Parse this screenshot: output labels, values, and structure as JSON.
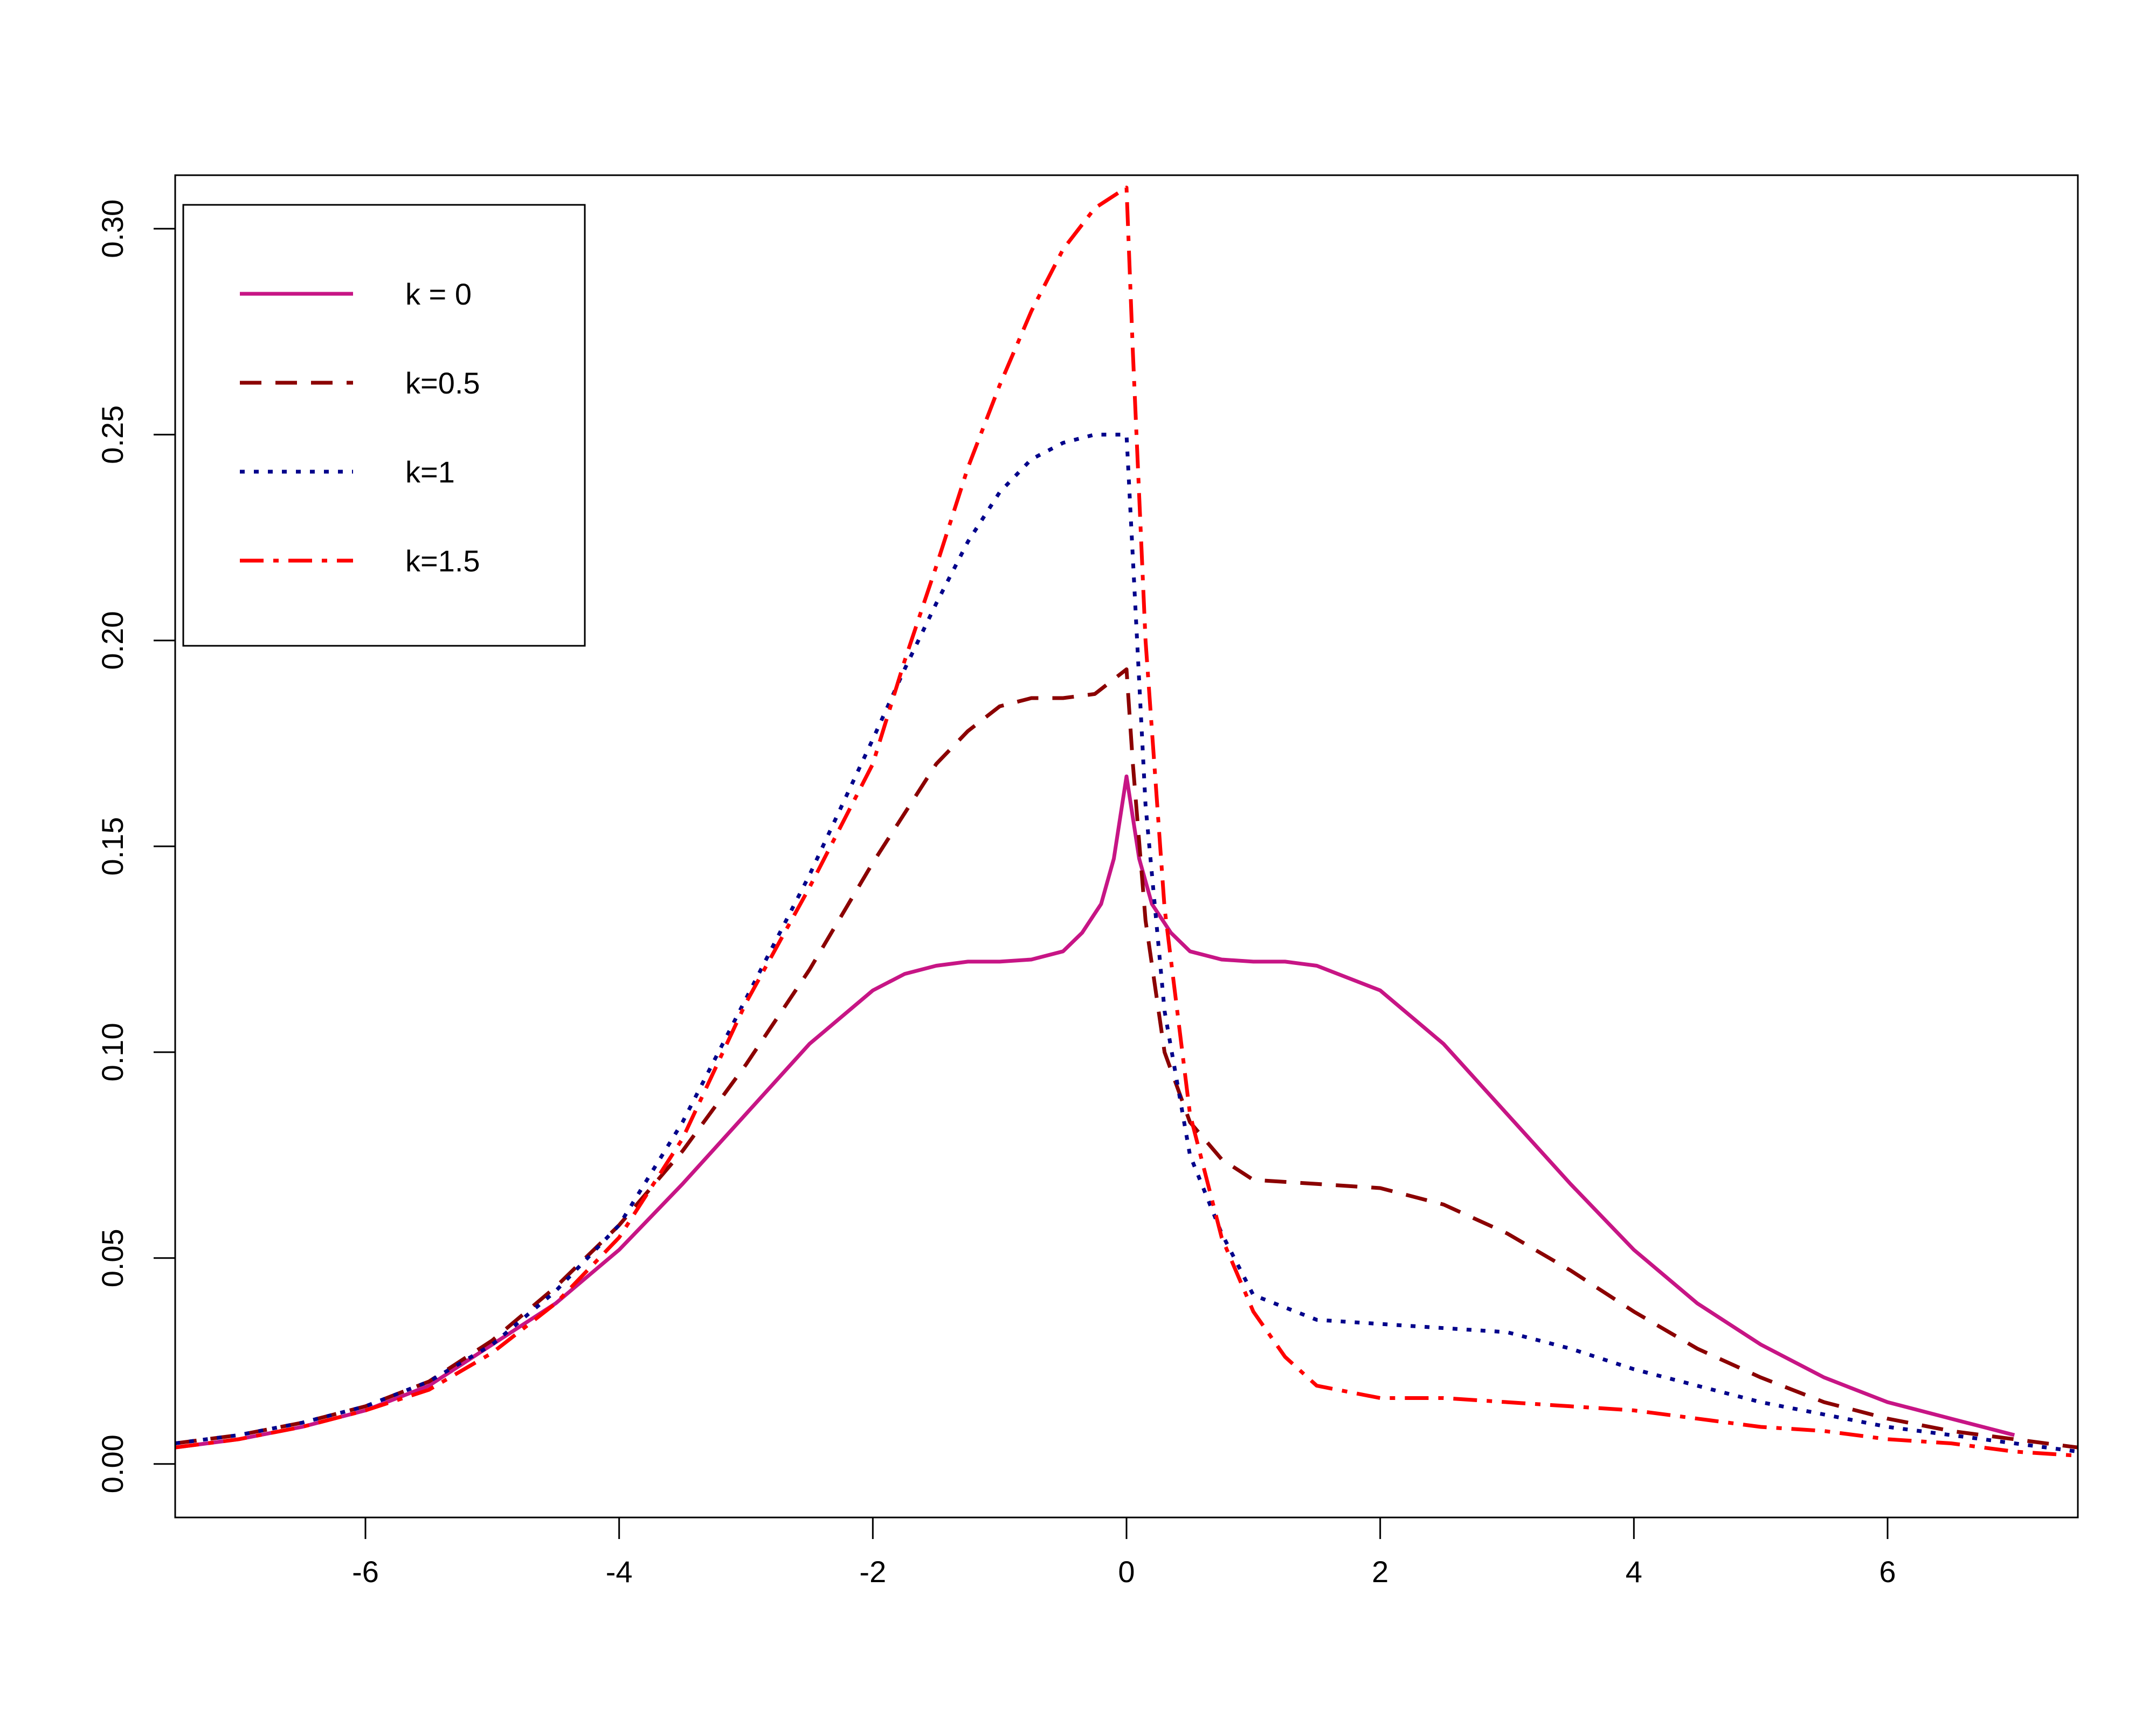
{
  "chart_data": {
    "type": "line",
    "title": "",
    "xlabel": "",
    "ylabel": "",
    "xlim": [
      -7.5,
      7.5
    ],
    "ylim": [
      -0.013,
      0.313
    ],
    "xticks": [
      -6,
      -4,
      -2,
      0,
      2,
      4,
      6
    ],
    "xtick_labels": [
      "-6",
      "-4",
      "-2",
      "0",
      "2",
      "4",
      "6"
    ],
    "yticks": [
      0,
      0.05,
      0.1,
      0.15,
      0.2,
      0.25,
      0.3
    ],
    "ytick_labels": [
      "0.00",
      "0.05",
      "0.10",
      "0.15",
      "0.20",
      "0.25",
      "0.30"
    ],
    "grid": false,
    "legend_position": "top-left",
    "series": [
      {
        "name": "k = 0",
        "color": "#c71585",
        "dash": "solid",
        "x": [
          -7.5,
          -7,
          -6.5,
          -6,
          -5.5,
          -5,
          -4.5,
          -4,
          -3.5,
          -3,
          -2.5,
          -2,
          -1.75,
          -1.5,
          -1.25,
          -1,
          -0.75,
          -0.5,
          -0.35,
          -0.2,
          -0.1,
          0,
          0.1,
          0.2,
          0.35,
          0.5,
          0.75,
          1,
          1.25,
          1.5,
          2,
          2.5,
          3,
          3.5,
          4,
          4.5,
          5,
          5.5,
          6,
          6.5,
          7
        ],
        "y": [
          0.004,
          0.006,
          0.009,
          0.013,
          0.019,
          0.029,
          0.039,
          0.052,
          0.068,
          0.085,
          0.102,
          0.115,
          0.119,
          0.121,
          0.122,
          0.122,
          0.1225,
          0.1245,
          0.129,
          0.136,
          0.147,
          0.167,
          0.147,
          0.136,
          0.129,
          0.1245,
          0.1225,
          0.122,
          0.122,
          0.121,
          0.115,
          0.102,
          0.085,
          0.068,
          0.052,
          0.039,
          0.029,
          0.021,
          0.015,
          0.011,
          0.007
        ]
      },
      {
        "name": "k=0.5",
        "color": "#8b0000",
        "dash": "dashed",
        "x": [
          -7.5,
          -7,
          -6.5,
          -6,
          -5.5,
          -5,
          -4.5,
          -4,
          -3.5,
          -3,
          -2.5,
          -2,
          -1.75,
          -1.5,
          -1.25,
          -1,
          -0.75,
          -0.5,
          -0.25,
          0,
          0.05,
          0.15,
          0.3,
          0.5,
          0.75,
          1,
          1.5,
          2,
          2.5,
          3,
          3.5,
          4,
          4.5,
          5,
          5.5,
          6,
          6.5,
          7,
          7.5
        ],
        "y": [
          0.005,
          0.007,
          0.01,
          0.014,
          0.02,
          0.03,
          0.043,
          0.058,
          0.076,
          0.097,
          0.12,
          0.146,
          0.158,
          0.17,
          0.178,
          0.184,
          0.186,
          0.186,
          0.187,
          0.193,
          0.17,
          0.132,
          0.1,
          0.083,
          0.074,
          0.069,
          0.068,
          0.067,
          0.063,
          0.056,
          0.047,
          0.037,
          0.028,
          0.021,
          0.015,
          0.011,
          0.008,
          0.006,
          0.004
        ]
      },
      {
        "name": "k=1",
        "color": "#00008b",
        "dash": "dotted",
        "x": [
          -7.5,
          -7,
          -6.5,
          -6,
          -5.5,
          -5,
          -4.5,
          -4,
          -3.5,
          -3,
          -2.5,
          -2,
          -1.75,
          -1.5,
          -1.25,
          -1,
          -0.75,
          -0.5,
          -0.25,
          0,
          0.05,
          0.15,
          0.3,
          0.5,
          0.75,
          1,
          1.5,
          2,
          2.5,
          3,
          3.5,
          4,
          4.5,
          5,
          5.5,
          6,
          6.5,
          7,
          7.5
        ],
        "y": [
          0.005,
          0.007,
          0.01,
          0.014,
          0.02,
          0.029,
          0.042,
          0.058,
          0.083,
          0.113,
          0.143,
          0.176,
          0.193,
          0.209,
          0.224,
          0.236,
          0.244,
          0.248,
          0.25,
          0.25,
          0.22,
          0.16,
          0.11,
          0.075,
          0.056,
          0.041,
          0.035,
          0.034,
          0.033,
          0.032,
          0.028,
          0.023,
          0.019,
          0.015,
          0.012,
          0.009,
          0.007,
          0.005,
          0.003
        ]
      },
      {
        "name": "k=1.5",
        "color": "#ff0000",
        "dash": "dashdot",
        "x": [
          -7.5,
          -7,
          -6.5,
          -6,
          -5.5,
          -5,
          -4.5,
          -4,
          -3.5,
          -3,
          -2.5,
          -2,
          -1.75,
          -1.5,
          -1.25,
          -1,
          -0.75,
          -0.5,
          -0.25,
          0,
          0.05,
          0.15,
          0.3,
          0.5,
          0.75,
          1,
          1.25,
          1.5,
          2,
          2.5,
          3,
          3.5,
          4,
          4.5,
          5,
          5.5,
          6,
          6.5,
          7,
          7.5
        ],
        "y": [
          0.004,
          0.006,
          0.009,
          0.013,
          0.018,
          0.027,
          0.039,
          0.055,
          0.079,
          0.112,
          0.14,
          0.17,
          0.195,
          0.218,
          0.242,
          0.262,
          0.28,
          0.295,
          0.305,
          0.31,
          0.27,
          0.2,
          0.135,
          0.085,
          0.055,
          0.037,
          0.026,
          0.019,
          0.016,
          0.016,
          0.015,
          0.014,
          0.013,
          0.011,
          0.009,
          0.008,
          0.006,
          0.005,
          0.003,
          0.002
        ]
      }
    ]
  }
}
